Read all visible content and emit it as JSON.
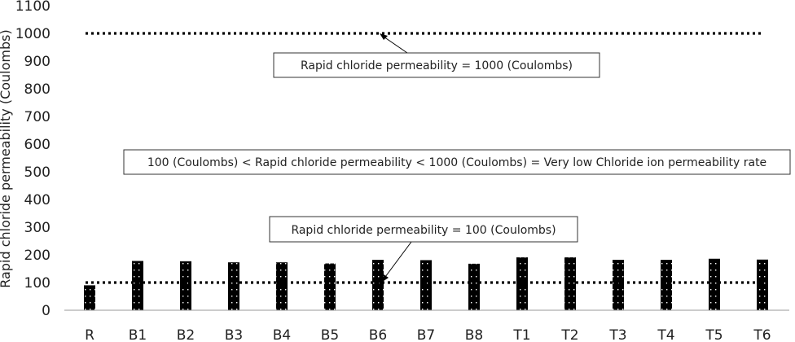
{
  "chart_data": {
    "type": "bar",
    "title": "",
    "xlabel": "",
    "ylabel": "Rapid chloride permeability (Coulombs)",
    "ylim": [
      0,
      1100
    ],
    "yticks": [
      0,
      100,
      200,
      300,
      400,
      500,
      600,
      700,
      800,
      900,
      1000,
      1100
    ],
    "grid": false,
    "categories": [
      "R",
      "B1",
      "B2",
      "B3",
      "B4",
      "B5",
      "B6",
      "B7",
      "B8",
      "T1",
      "T2",
      "T3",
      "T4",
      "T5",
      "T6"
    ],
    "values": [
      90,
      178,
      177,
      173,
      173,
      169,
      182,
      181,
      168,
      191,
      191,
      182,
      182,
      186,
      183
    ],
    "bar_color": "#000000",
    "bar_pattern": "dotted",
    "reference_lines": [
      {
        "value": 1000,
        "style": "dotted",
        "color": "#000000"
      },
      {
        "value": 100,
        "style": "dotted",
        "color": "#000000"
      }
    ],
    "annotations": [
      {
        "text": "Rapid chloride permeability = 1000 (Coulombs)",
        "points_to": 1000
      },
      {
        "text": "100 (Coulombs) < Rapid chloride permeability < 1000 (Coulombs) = Very low Chloride ion permeability rate"
      },
      {
        "text": "Rapid chloride permeability = 100 (Coulombs)",
        "points_to": 100
      }
    ]
  }
}
